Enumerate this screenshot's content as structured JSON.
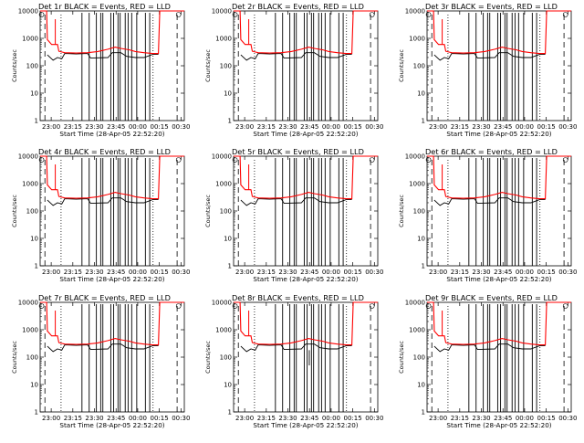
{
  "chart_data": {
    "type": "line",
    "title_template": "Det {n}r BLACK = Events, RED = LLD",
    "legend_text": "Det {n}r BLACK = Events, RED = LLD",
    "xlabel": "Start Time (28-Apr-05 22:52:20)",
    "ylabel": "Counts/sec",
    "x_ticks": [
      "23:00",
      "23:15",
      "23:30",
      "23:45",
      "00:00",
      "00:15",
      "00:30"
    ],
    "x_tick_minutes": [
      7.67,
      22.67,
      37.67,
      52.67,
      67.67,
      82.67,
      97.67
    ],
    "xlim_minutes": [
      0,
      100
    ],
    "y_scale": "log",
    "y_ticks": [
      "1",
      "10",
      "100",
      "1000",
      "10000"
    ],
    "ylim": [
      1,
      10000
    ],
    "series_colors": {
      "events": "#000000",
      "lld": "#ff0000"
    },
    "dashed_vlines_minutes": [
      3.3,
      95.0
    ],
    "dotted_vlines_minutes": [
      14.5,
      78.3
    ],
    "solid_vlines_minutes": [
      29,
      34,
      39,
      42,
      43.5,
      49,
      51,
      54,
      55.5,
      59,
      61,
      63.5,
      67,
      73,
      76
    ],
    "gap_minutes": [
      [
        -1,
        4.5
      ],
      [
        83,
        101
      ]
    ],
    "lld_profile": [
      [
        0,
        11000
      ],
      [
        4.5,
        11000
      ],
      [
        5,
        900
      ],
      [
        8,
        600
      ],
      [
        12,
        600
      ],
      [
        13,
        340
      ],
      [
        17,
        300
      ],
      [
        25,
        290
      ],
      [
        33,
        300
      ],
      [
        40,
        330
      ],
      [
        47,
        400
      ],
      [
        52,
        480
      ],
      [
        56,
        430
      ],
      [
        62,
        380
      ],
      [
        66,
        330
      ],
      [
        72,
        300
      ],
      [
        78,
        280
      ],
      [
        82,
        280
      ],
      [
        83,
        11000
      ],
      [
        100,
        11000
      ]
    ],
    "events_profile": [
      [
        5,
        250
      ],
      [
        9,
        160
      ],
      [
        12,
        200
      ],
      [
        15,
        180
      ],
      [
        17,
        280
      ],
      [
        25,
        270
      ],
      [
        33,
        280
      ],
      [
        35,
        190
      ],
      [
        47,
        200
      ],
      [
        50,
        300
      ],
      [
        56,
        300
      ],
      [
        60,
        220
      ],
      [
        66,
        200
      ],
      [
        72,
        200
      ],
      [
        78,
        260
      ],
      [
        82,
        260
      ]
    ],
    "panels": [
      {
        "detector": "1",
        "events_spike": null
      },
      {
        "detector": "2",
        "events_spike": null
      },
      {
        "detector": "3",
        "events_spike": null
      },
      {
        "detector": "4",
        "events_spike": null
      },
      {
        "detector": "5",
        "events_spike": null
      },
      {
        "detector": "6",
        "events_spike": null
      },
      {
        "detector": "7",
        "events_spike": null
      },
      {
        "detector": "8",
        "events_spike": 50
      },
      {
        "detector": "9",
        "events_spike": null
      }
    ]
  }
}
